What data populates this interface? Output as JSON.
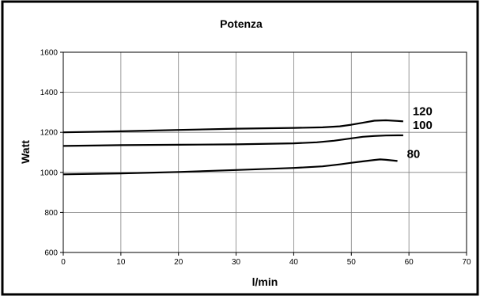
{
  "chart_data": {
    "type": "line",
    "title": "Potenza",
    "xlabel": "l/min",
    "ylabel": "Watt",
    "xlim": [
      0,
      70
    ],
    "ylim": [
      600,
      1600
    ],
    "x_ticks": [
      0,
      10,
      20,
      30,
      40,
      50,
      60,
      70
    ],
    "y_ticks": [
      600,
      800,
      1000,
      1200,
      1400,
      1600
    ],
    "grid": true,
    "legend": "none",
    "series": [
      {
        "name": "120",
        "x": [
          0,
          10,
          20,
          30,
          40,
          45,
          48,
          50,
          52,
          54,
          56,
          58,
          59
        ],
        "y": [
          1200,
          1205,
          1212,
          1218,
          1222,
          1225,
          1230,
          1238,
          1248,
          1258,
          1260,
          1257,
          1255
        ]
      },
      {
        "name": "100",
        "x": [
          0,
          10,
          20,
          30,
          40,
          44,
          47,
          50,
          52,
          54,
          56,
          58,
          59
        ],
        "y": [
          1132,
          1136,
          1138,
          1140,
          1145,
          1150,
          1158,
          1170,
          1178,
          1182,
          1184,
          1185,
          1185
        ]
      },
      {
        "name": "80",
        "x": [
          0,
          10,
          20,
          30,
          40,
          45,
          48,
          50,
          52,
          54,
          55,
          56,
          58
        ],
        "y": [
          990,
          995,
          1002,
          1012,
          1022,
          1030,
          1040,
          1048,
          1055,
          1062,
          1065,
          1063,
          1057
        ]
      }
    ],
    "colors": {
      "line": "#000000",
      "grid": "#808080",
      "frame": "#000000",
      "background": "#ffffff"
    }
  }
}
